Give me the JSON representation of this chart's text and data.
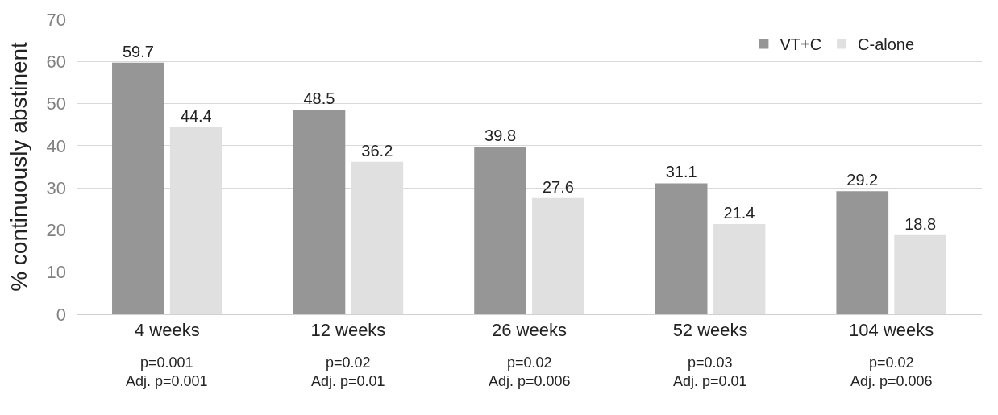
{
  "chart_data": {
    "type": "bar",
    "ylabel": "% continuously abstinent",
    "categories": [
      "4 weeks",
      "12 weeks",
      "26 weeks",
      "52 weeks",
      "104 weeks"
    ],
    "series": [
      {
        "name": "VT+C",
        "color": "#969696",
        "values": [
          59.7,
          48.5,
          39.8,
          31.1,
          29.2
        ]
      },
      {
        "name": "C-alone",
        "color": "#e0e0e0",
        "values": [
          44.4,
          36.2,
          27.6,
          21.4,
          18.8
        ]
      }
    ],
    "ylim": [
      0,
      70
    ],
    "yticks": [
      0,
      10,
      20,
      30,
      40,
      50,
      60,
      70
    ],
    "grid": "y",
    "legend": "top right",
    "data_labels": true,
    "annotations": [
      "p=0.001\nAdj. p=0.001",
      "p=0.02\nAdj. p=0.01",
      "p=0.02\nAdj. p=0.006",
      "p=0.03\nAdj. p=0.01",
      "p=0.02\nAdj. p=0.006"
    ]
  }
}
